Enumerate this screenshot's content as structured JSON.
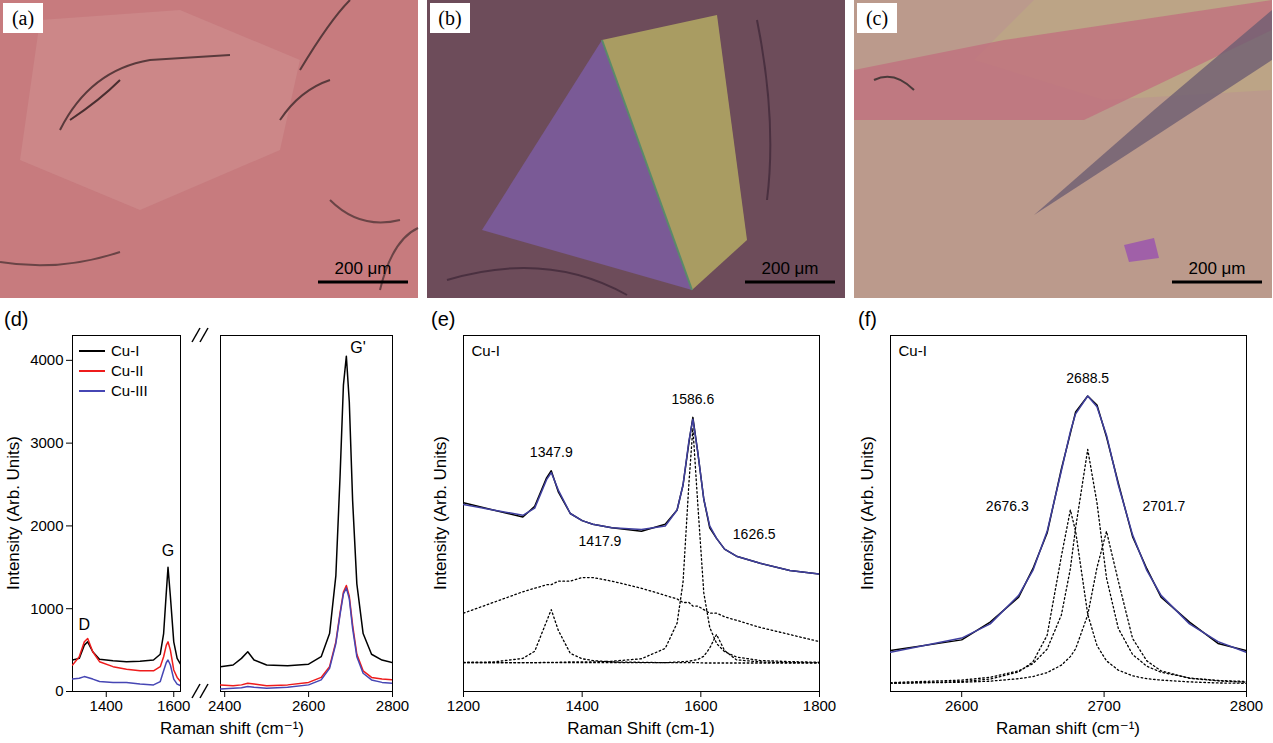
{
  "images": [
    {
      "panel": "(a)",
      "scale_bar": "200 μm"
    },
    {
      "panel": "(b)",
      "scale_bar": "200 μm"
    },
    {
      "panel": "(c)",
      "scale_bar": "200 μm"
    }
  ],
  "chart_data": [
    {
      "panel": "(d)",
      "type": "line",
      "xlabel": "Raman shift (cm⁻¹)",
      "ylabel": "Intensity (Arb. Units)",
      "ylim": [
        0,
        4300
      ],
      "yticks": [
        0,
        1000,
        2000,
        3000,
        4000
      ],
      "segments": [
        {
          "xlim": [
            1300,
            1620
          ],
          "xticks": [
            1400,
            1600
          ]
        },
        {
          "xlim": [
            2390,
            2800
          ],
          "xticks": [
            2400,
            2600,
            2800
          ]
        }
      ],
      "legend": "top-left",
      "x": [
        1300,
        1320,
        1335,
        1345,
        1360,
        1380,
        1420,
        1460,
        1500,
        1540,
        1560,
        1570,
        1578,
        1583,
        1590,
        1600,
        1610,
        1620,
        2390,
        2420,
        2440,
        2455,
        2470,
        2500,
        2550,
        2600,
        2630,
        2650,
        2665,
        2675,
        2683,
        2690,
        2697,
        2705,
        2715,
        2730,
        2750,
        2775,
        2800
      ],
      "series": [
        {
          "name": "Cu-I",
          "color": "#000000",
          "line_style": "solid",
          "values": [
            380,
            400,
            560,
            600,
            480,
            390,
            370,
            360,
            365,
            380,
            450,
            700,
            1200,
            1500,
            1150,
            600,
            400,
            330,
            300,
            320,
            400,
            480,
            380,
            320,
            310,
            330,
            420,
            700,
            1400,
            2600,
            3700,
            4050,
            3500,
            2300,
            1300,
            700,
            450,
            380,
            350
          ]
        },
        {
          "name": "Cu-II",
          "color": "#ee1c1c",
          "line_style": "solid",
          "values": [
            320,
            420,
            600,
            640,
            480,
            360,
            300,
            270,
            250,
            250,
            300,
            420,
            560,
            600,
            500,
            260,
            170,
            120,
            80,
            70,
            80,
            100,
            90,
            70,
            80,
            110,
            170,
            300,
            600,
            950,
            1200,
            1280,
            1150,
            800,
            450,
            250,
            170,
            150,
            140
          ]
        },
        {
          "name": "Cu-III",
          "color": "#4646b4",
          "line_style": "solid",
          "values": [
            150,
            160,
            180,
            170,
            150,
            120,
            110,
            110,
            90,
            80,
            120,
            250,
            350,
            380,
            320,
            150,
            90,
            70,
            30,
            40,
            45,
            60,
            50,
            40,
            50,
            80,
            140,
            280,
            580,
            930,
            1180,
            1250,
            1120,
            760,
            420,
            220,
            140,
            110,
            100
          ]
        }
      ],
      "annotations": [
        {
          "text": "D",
          "x": 1335,
          "y": 800
        },
        {
          "text": "G",
          "x": 1583,
          "y": 1700
        },
        {
          "text": "G'",
          "x": 2718,
          "y": 4150
        }
      ]
    },
    {
      "panel": "(e)",
      "type": "line",
      "subtitle": "Cu-I",
      "xlabel": "Raman Shift (cm-1)",
      "ylabel": "Intensity (Arb. Units)",
      "xlim": [
        1200,
        1800
      ],
      "xticks": [
        1200,
        1400,
        1600,
        1800
      ],
      "ylim": [
        0,
        100
      ],
      "tick_labels": "x",
      "x": [
        1200,
        1250,
        1300,
        1320,
        1340,
        1347.9,
        1360,
        1380,
        1400,
        1417.9,
        1450,
        1500,
        1540,
        1560,
        1570,
        1580,
        1586.6,
        1595,
        1605,
        1615,
        1626.5,
        1640,
        1660,
        1700,
        1750,
        1800
      ],
      "series": [
        {
          "color": "#000000",
          "line_style": "dotted",
          "values": [
            22,
            25,
            28,
            29,
            30,
            30,
            31,
            31,
            32,
            32,
            31,
            29,
            27,
            26,
            25,
            25,
            24,
            24,
            23,
            22,
            22,
            21,
            20,
            18,
            16,
            14
          ]
        },
        {
          "color": "#000000",
          "line_style": "dotted",
          "values": [
            8.2,
            8.3,
            9.3,
            11.3,
            19.7,
            23,
            17.1,
            10.7,
            9.2,
            8.7,
            8.3,
            8.2,
            8.1,
            8.1,
            8.1,
            8.1,
            8.1,
            8.1,
            8,
            8,
            8,
            8,
            8,
            8,
            8,
            8
          ]
        },
        {
          "color": "#000000",
          "line_style": "dotted",
          "values": [
            8.1,
            8.1,
            8.1,
            8.1,
            8.2,
            8.2,
            8.2,
            8.3,
            8.3,
            8.3,
            8.5,
            9.2,
            12.1,
            19.2,
            30.7,
            58.7,
            74,
            52.3,
            27.7,
            18,
            13.5,
            11.2,
            9.7,
            8.7,
            8.4,
            8.2
          ]
        },
        {
          "color": "#000000",
          "line_style": "dotted",
          "values": [
            8.1,
            8.1,
            8.1,
            8.1,
            8.1,
            8.1,
            8.1,
            8.1,
            8.1,
            8.1,
            8.1,
            8.1,
            8.1,
            8.3,
            8.4,
            8.5,
            8.7,
            9,
            9.9,
            12.2,
            16,
            11.5,
            8.9,
            8.3,
            8.1,
            8.1
          ]
        },
        {
          "color": "#000000",
          "line_style": "solid",
          "values": [
            53,
            51,
            49,
            52,
            60,
            62,
            56,
            50,
            48,
            47,
            46,
            45,
            47,
            51,
            58,
            70,
            77,
            67,
            54,
            46,
            43,
            40,
            38,
            36,
            34,
            33
          ]
        },
        {
          "color": "#3f3f9f",
          "line_style": "solid",
          "values": [
            52.5,
            51,
            49.5,
            51.5,
            59.5,
            61.5,
            56.5,
            50,
            48,
            47,
            46,
            45.5,
            46.5,
            51,
            58,
            70.5,
            76.5,
            67,
            54,
            46.5,
            43,
            40,
            38,
            36,
            34,
            33
          ]
        }
      ],
      "annotations": [
        {
          "text": "1347.9",
          "x": 1347.9,
          "y": 67
        },
        {
          "text": "1417.9",
          "x": 1430,
          "y": 42
        },
        {
          "text": "1586.6",
          "x": 1586.6,
          "y": 82
        },
        {
          "text": "1626.5",
          "x": 1690,
          "y": 44
        }
      ]
    },
    {
      "panel": "(f)",
      "type": "line",
      "subtitle": "Cu-I",
      "xlabel": "Raman shift (cm⁻¹)",
      "ylabel": "Intensity (Arb. Units)",
      "xlim": [
        2550,
        2800
      ],
      "xticks": [
        2600,
        2700,
        2800
      ],
      "ylim": [
        0,
        100
      ],
      "tick_labels": "x",
      "x": [
        2550,
        2600,
        2620,
        2640,
        2650,
        2660,
        2670,
        2676.3,
        2680,
        2688.5,
        2695,
        2701.7,
        2710,
        2720,
        2730,
        2740,
        2760,
        2780,
        2800
      ],
      "series": [
        {
          "color": "#000000",
          "line_style": "dotted",
          "values": [
            2.3,
            2.8,
            3.5,
            5.5,
            8.3,
            15.8,
            38,
            51,
            45,
            21.7,
            12.9,
            8.6,
            6,
            4.4,
            3.6,
            3.2,
            2.7,
            2.4,
            2.3
          ]
        },
        {
          "color": "#000000",
          "line_style": "dotted",
          "values": [
            2.5,
            3.2,
            4,
            5.8,
            7.8,
            11.9,
            21.5,
            34.5,
            46,
            68,
            53,
            31.9,
            17.7,
            10.4,
            7.1,
            5.4,
            3.8,
            3.1,
            2.8
          ]
        },
        {
          "color": "#000000",
          "line_style": "dotted",
          "values": [
            2.3,
            2.6,
            2.9,
            3.6,
            4.2,
            5.3,
            7.4,
            9.8,
            12,
            21.5,
            34.8,
            45,
            31,
            14.9,
            8.6,
            5.8,
            3.7,
            3,
            2.6
          ]
        },
        {
          "color": "#000000",
          "line_style": "solid",
          "values": [
            11.5,
            14.5,
            19.5,
            26.5,
            34.5,
            44.5,
            62.5,
            72.5,
            78.5,
            83,
            80.5,
            71.5,
            58.5,
            43.5,
            34.5,
            26.5,
            19.5,
            13.5,
            11.5
          ]
        },
        {
          "color": "#3f3f9f",
          "line_style": "solid",
          "values": [
            11,
            15,
            19,
            27,
            34,
            45,
            62,
            73,
            78,
            83,
            80,
            72,
            58,
            44,
            34,
            27,
            19,
            14,
            11
          ]
        }
      ],
      "annotations": [
        {
          "text": "2676.3",
          "x": 2632,
          "y": 52
        },
        {
          "text": "2688.5",
          "x": 2688.5,
          "y": 88
        },
        {
          "text": "2701.7",
          "x": 2742,
          "y": 52
        }
      ]
    }
  ]
}
